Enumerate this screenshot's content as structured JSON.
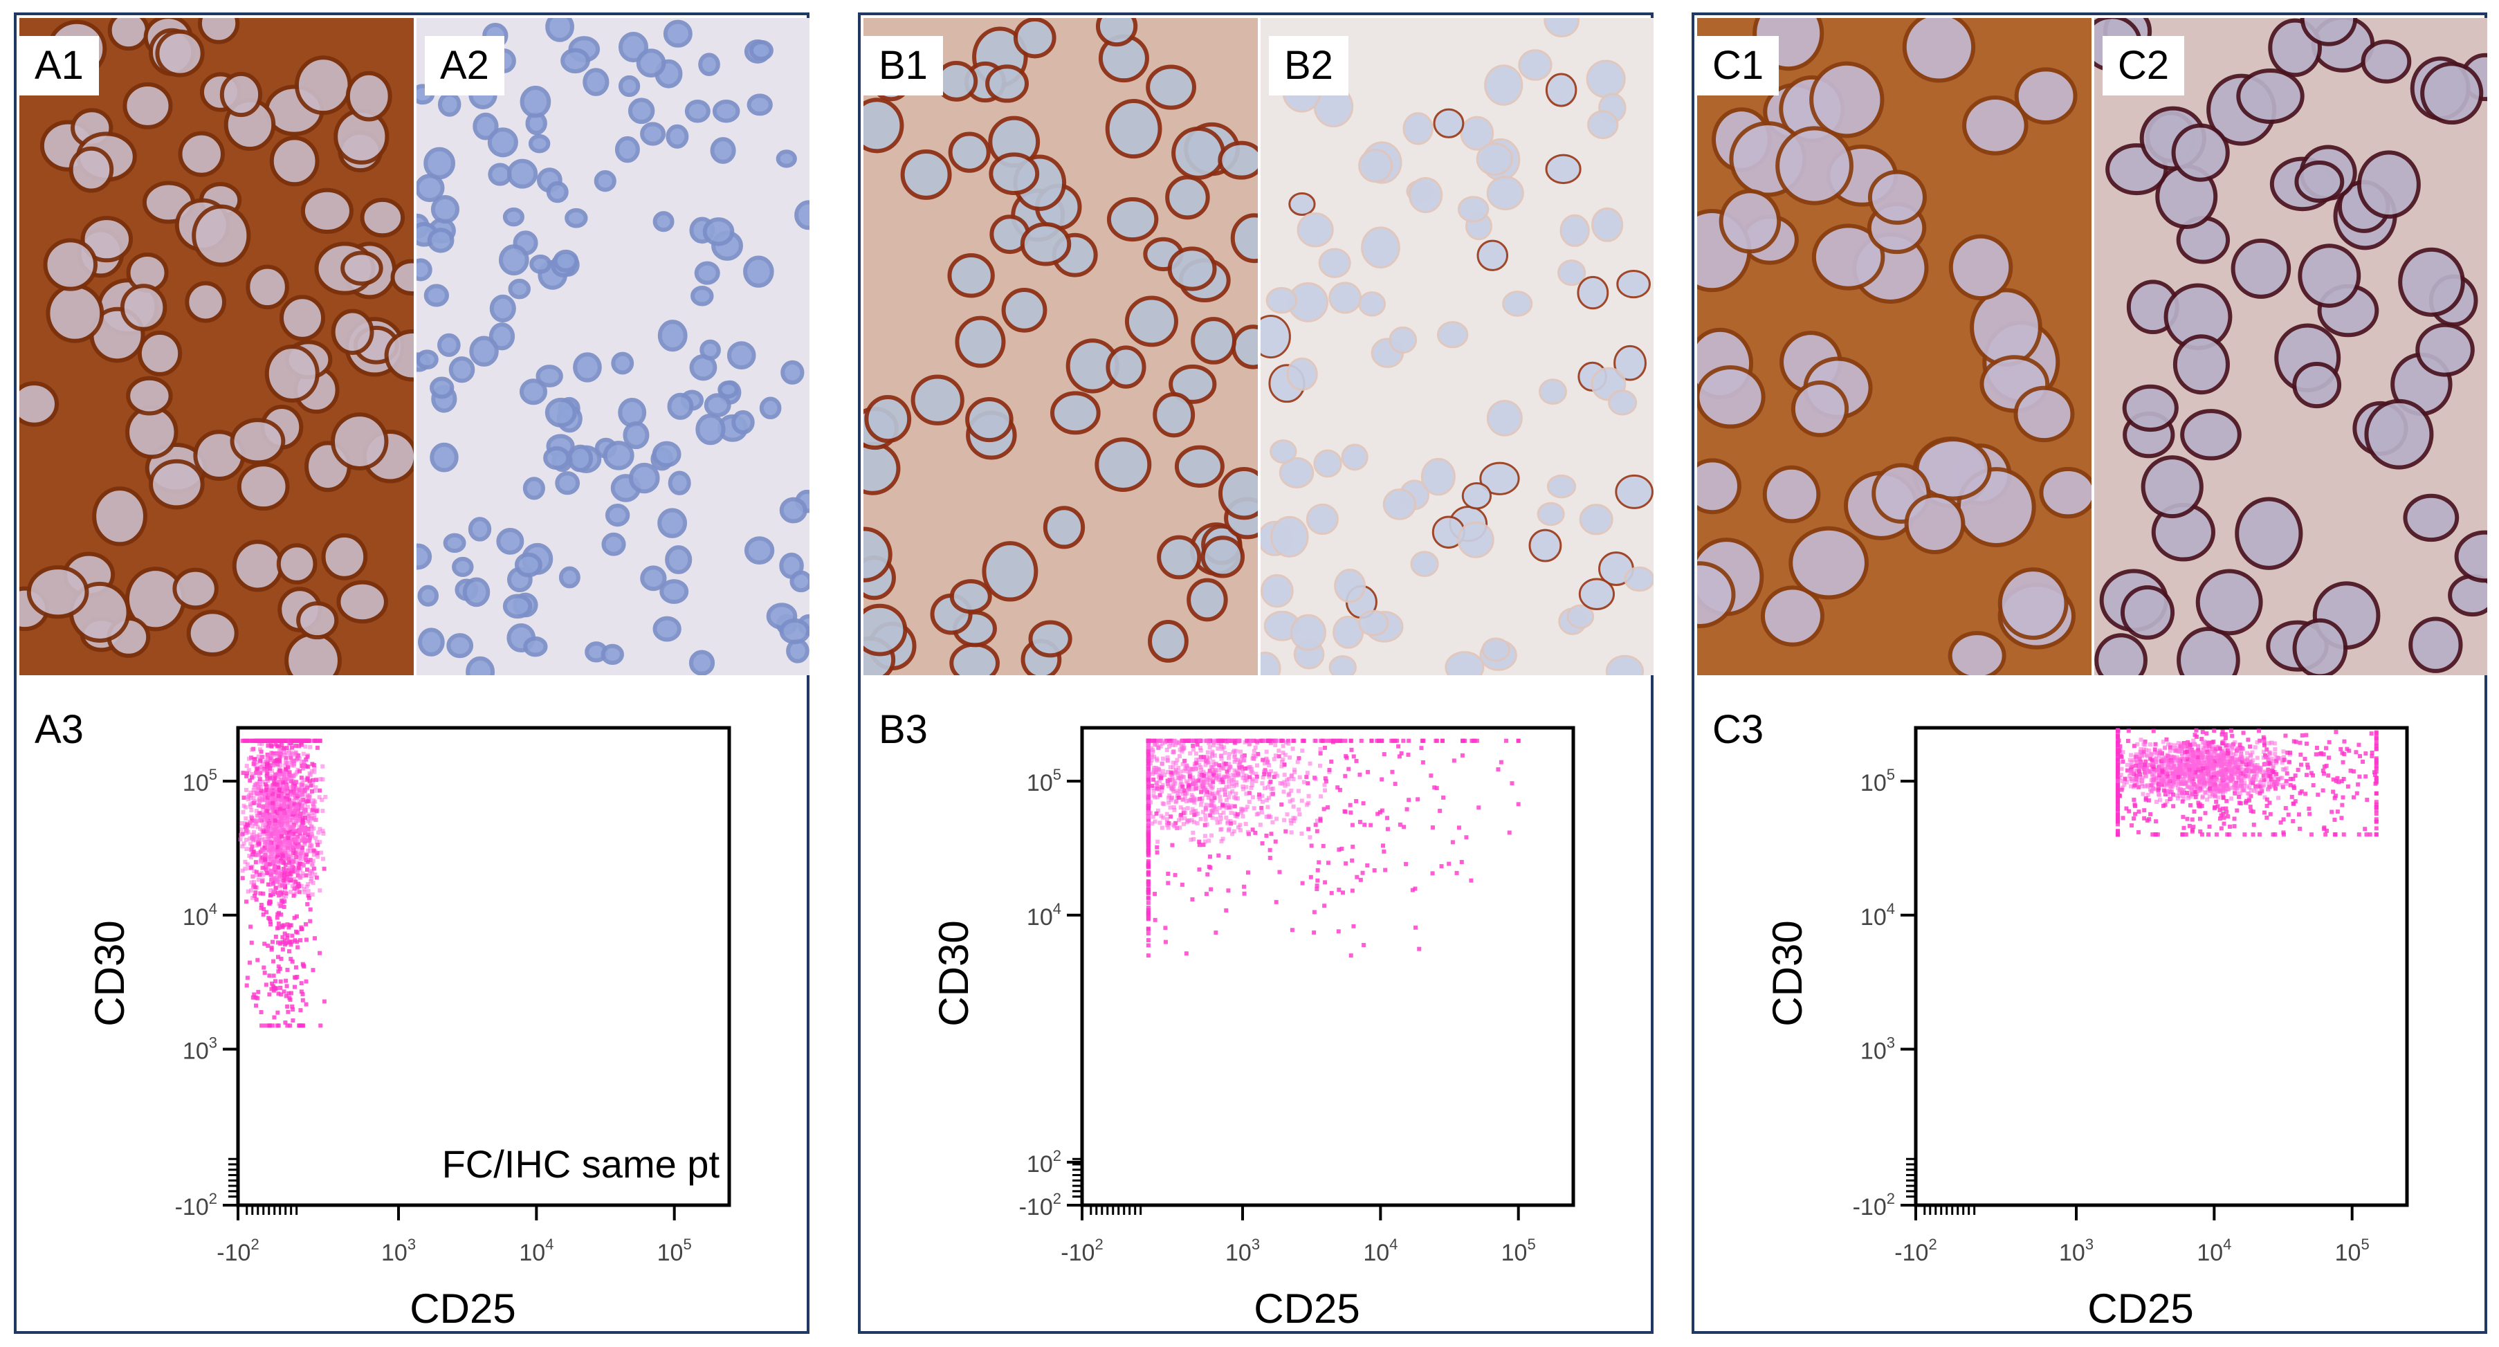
{
  "figure": {
    "panels": [
      {
        "id": "A",
        "images": [
          {
            "label": "A1",
            "stain": "strong-brown"
          },
          {
            "label": "A2",
            "stain": "negative"
          }
        ],
        "plot_label": "A3",
        "annotation": "FC/IHC same pt",
        "population": "low-x-wide-y"
      },
      {
        "id": "B",
        "images": [
          {
            "label": "B1",
            "stain": "membranous-brown"
          },
          {
            "label": "B2",
            "stain": "scattered-brown"
          }
        ],
        "plot_label": "B3",
        "annotation": "",
        "population": "spread-x-high-y"
      },
      {
        "id": "C",
        "images": [
          {
            "label": "C1",
            "stain": "strong-brown-large"
          },
          {
            "label": "C2",
            "stain": "dark-purple-brown"
          }
        ],
        "plot_label": "C3",
        "annotation": "",
        "population": "high-x-high-y"
      }
    ],
    "colors": {
      "frame": "#1f3864",
      "dot": "#ff33cc",
      "brown": "#8b3a0e",
      "nuclei": "#9fb0d8"
    }
  },
  "chart_data": [
    {
      "type": "scatter",
      "title": "A3",
      "xlabel": "CD25",
      "ylabel": "CD30",
      "x_scale": "biexponential",
      "y_scale": "biexponential",
      "x_ticks": [
        "-10^2",
        "10^3",
        "10^4",
        "10^5"
      ],
      "y_ticks": [
        "10^5",
        "10^4",
        "10^3",
        "-10^2"
      ],
      "annotation": "FC/IHC same pt",
      "population": {
        "cd25_range": [
          -100,
          300
        ],
        "cd30_range": [
          1500,
          200000
        ],
        "density_center": {
          "cd25": 0,
          "cd30": 50000
        }
      }
    },
    {
      "type": "scatter",
      "title": "B3",
      "xlabel": "CD25",
      "ylabel": "CD30",
      "x_scale": "biexponential",
      "y_scale": "biexponential",
      "x_ticks": [
        "-10^2",
        "10^3",
        "10^4",
        "10^5"
      ],
      "y_ticks": [
        "10^5",
        "10^4",
        "10^2",
        "-10^2"
      ],
      "population": {
        "cd25_range": [
          200,
          100000
        ],
        "cd30_range": [
          5000,
          200000
        ],
        "density_center": {
          "cd25": 500,
          "cd30": 100000
        }
      }
    },
    {
      "type": "scatter",
      "title": "C3",
      "xlabel": "CD25",
      "ylabel": "CD30",
      "x_scale": "biexponential",
      "y_scale": "biexponential",
      "x_ticks": [
        "-10^2",
        "10^3",
        "10^4",
        "10^5"
      ],
      "y_ticks": [
        "10^5",
        "10^4",
        "10^3",
        "-10^2"
      ],
      "population": {
        "cd25_range": [
          2000,
          150000
        ],
        "cd30_range": [
          40000,
          250000
        ],
        "density_center": {
          "cd25": 8000,
          "cd30": 120000
        }
      }
    }
  ]
}
